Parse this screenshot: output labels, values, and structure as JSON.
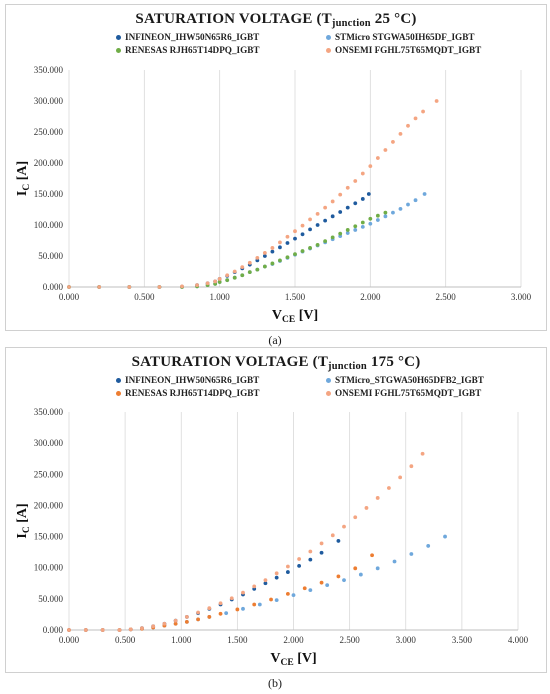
{
  "chart_data": [
    {
      "type": "scatter",
      "caption": "(a)",
      "title_main": "SATURATION VOLTAGE (T",
      "title_sub": "junction",
      "title_end": " 25 °C)",
      "xlabel_main": "V",
      "xlabel_sub": "CE",
      "xlabel_end": " [V]",
      "ylabel_main": "I",
      "ylabel_sub": "C",
      "ylabel_end": " [A]",
      "xlim": [
        0,
        3
      ],
      "ylim": [
        0,
        350
      ],
      "x_ticks": [
        0,
        0.5,
        1,
        1.5,
        2,
        2.5,
        3
      ],
      "y_ticks": [
        0,
        50,
        100,
        150,
        200,
        250,
        300,
        350
      ],
      "x_tick_labels": [
        "0.000",
        "0.500",
        "1.000",
        "1.500",
        "2.000",
        "2.500",
        "3.000"
      ],
      "y_tick_labels": [
        "0.000",
        "50.000",
        "100.000",
        "150.000",
        "200.000",
        "250.000",
        "300.000",
        "350.000"
      ],
      "grid": "vertical",
      "legend_position": "top",
      "series": [
        {
          "name": "INFINEON_IHW50N65R6_IGBT",
          "color": "#1f5b9e",
          "x": [
            0.0,
            0.2,
            0.4,
            0.6,
            0.75,
            0.85,
            0.92,
            0.97,
            1.0,
            1.05,
            1.1,
            1.15,
            1.2,
            1.25,
            1.3,
            1.35,
            1.4,
            1.45,
            1.5,
            1.55,
            1.6,
            1.65,
            1.7,
            1.75,
            1.8,
            1.85,
            1.9,
            1.95,
            1.99
          ],
          "y": [
            0,
            0,
            0,
            0,
            0.5,
            3,
            6,
            9,
            13,
            18,
            24,
            30,
            36,
            43,
            50,
            57,
            64,
            71,
            78,
            85,
            93,
            100,
            107,
            114,
            121,
            128,
            135,
            142,
            150
          ]
        },
        {
          "name": "STMicro STGWA50IH65DF_IGBT",
          "color": "#6fa8dc",
          "x": [
            0.0,
            0.2,
            0.4,
            0.6,
            0.75,
            0.85,
            0.92,
            0.97,
            1.0,
            1.05,
            1.1,
            1.15,
            1.2,
            1.25,
            1.3,
            1.35,
            1.4,
            1.45,
            1.5,
            1.55,
            1.6,
            1.65,
            1.7,
            1.75,
            1.8,
            1.85,
            1.9,
            1.95,
            2.0,
            2.05,
            2.1,
            2.15,
            2.2,
            2.25,
            2.3,
            2.36
          ],
          "y": [
            0,
            0,
            0,
            0,
            0,
            1,
            3,
            5,
            8,
            11,
            15,
            19,
            24,
            28,
            33,
            37,
            42,
            47,
            52,
            57,
            62,
            67,
            72,
            77,
            82,
            87,
            92,
            97,
            102,
            108,
            114,
            120,
            126,
            133,
            140,
            150
          ]
        },
        {
          "name": "RENESAS RJH65T14DPQ_IGBT",
          "color": "#70ad47",
          "x": [
            0.0,
            0.2,
            0.4,
            0.6,
            0.75,
            0.85,
            0.92,
            0.97,
            1.0,
            1.05,
            1.1,
            1.15,
            1.2,
            1.25,
            1.3,
            1.35,
            1.4,
            1.45,
            1.5,
            1.55,
            1.6,
            1.65,
            1.7,
            1.75,
            1.8,
            1.85,
            1.9,
            1.95,
            2.0,
            2.05,
            2.1
          ],
          "y": [
            0,
            0,
            0,
            0,
            0,
            1,
            3,
            5,
            8,
            11,
            15,
            19,
            24,
            28,
            33,
            38,
            43,
            48,
            53,
            58,
            63,
            68,
            74,
            80,
            86,
            92,
            98,
            104,
            110,
            115,
            120
          ]
        },
        {
          "name": "ONSEMI FGHL75T65MQDT_IGBT",
          "color": "#f4a582",
          "x": [
            0.0,
            0.2,
            0.4,
            0.6,
            0.75,
            0.85,
            0.92,
            0.97,
            1.0,
            1.05,
            1.1,
            1.15,
            1.2,
            1.25,
            1.3,
            1.35,
            1.4,
            1.45,
            1.5,
            1.55,
            1.6,
            1.65,
            1.7,
            1.75,
            1.8,
            1.85,
            1.9,
            1.95,
            2.0,
            2.05,
            2.1,
            2.15,
            2.2,
            2.25,
            2.3,
            2.35,
            2.44
          ],
          "y": [
            0,
            0,
            0,
            0,
            1,
            3,
            6,
            9,
            13,
            19,
            25,
            32,
            39,
            47,
            55,
            63,
            72,
            81,
            90,
            99,
            109,
            118,
            128,
            138,
            149,
            160,
            171,
            183,
            195,
            208,
            221,
            234,
            247,
            260,
            272,
            283,
            300
          ]
        }
      ]
    },
    {
      "type": "scatter",
      "caption": "(b)",
      "title_main": "SATURATION VOLTAGE (T",
      "title_sub": "junction",
      "title_end": " 175 °C)",
      "xlabel_main": "V",
      "xlabel_sub": "CE",
      "xlabel_end": " [V]",
      "ylabel_main": "I",
      "ylabel_sub": "C",
      "ylabel_end": " [A]",
      "xlim": [
        0,
        4
      ],
      "ylim": [
        0,
        350
      ],
      "x_ticks": [
        0,
        0.5,
        1,
        1.5,
        2,
        2.5,
        3,
        3.5,
        4
      ],
      "y_ticks": [
        0,
        50,
        100,
        150,
        200,
        250,
        300,
        350
      ],
      "x_tick_labels": [
        "0.000",
        "0.500",
        "1.000",
        "1.500",
        "2.000",
        "2.500",
        "3.000",
        "3.500",
        "4.000"
      ],
      "y_tick_labels": [
        "0.000",
        "50.000",
        "100.000",
        "150.000",
        "200.000",
        "250.000",
        "300.000",
        "350.000"
      ],
      "grid": "vertical",
      "legend_position": "top",
      "series": [
        {
          "name": "INFINEON_IHW50N65R6_IGBT",
          "color": "#1f5b9e",
          "x": [
            0.0,
            0.15,
            0.3,
            0.45,
            0.55,
            0.65,
            0.75,
            0.85,
            0.95,
            1.05,
            1.15,
            1.25,
            1.35,
            1.45,
            1.55,
            1.65,
            1.75,
            1.85,
            1.95,
            2.05,
            2.15,
            2.25,
            2.4
          ],
          "y": [
            0,
            0,
            0,
            0,
            1,
            3,
            6,
            10,
            15,
            21,
            27,
            34,
            41,
            49,
            57,
            66,
            75,
            84,
            93,
            103,
            113,
            124,
            143
          ]
        },
        {
          "name": "STMicro_STGWA50H65DFB2_IGBT",
          "color": "#6fa8dc",
          "x": [
            0.0,
            0.15,
            0.3,
            0.45,
            0.55,
            0.65,
            0.75,
            0.85,
            0.95,
            1.05,
            1.15,
            1.25,
            1.4,
            1.55,
            1.7,
            1.85,
            2.0,
            2.15,
            2.3,
            2.45,
            2.6,
            2.75,
            2.9,
            3.05,
            3.2,
            3.35
          ],
          "y": [
            0,
            0,
            0,
            0,
            1,
            2,
            4,
            7,
            10,
            13,
            17,
            21,
            27,
            34,
            41,
            48,
            56,
            64,
            72,
            80,
            89,
            99,
            110,
            122,
            135,
            150
          ]
        },
        {
          "name": "RENESAS RJH65T14DPQ_IGBT",
          "color": "#ed7d31",
          "x": [
            0.0,
            0.15,
            0.3,
            0.45,
            0.55,
            0.65,
            0.75,
            0.85,
            0.95,
            1.05,
            1.15,
            1.25,
            1.35,
            1.5,
            1.65,
            1.8,
            1.95,
            2.1,
            2.25,
            2.4,
            2.55,
            2.7
          ],
          "y": [
            0,
            0,
            0,
            0,
            1,
            2,
            4,
            7,
            10,
            13,
            17,
            21,
            26,
            33,
            41,
            49,
            58,
            67,
            76,
            86,
            99,
            120
          ]
        },
        {
          "name": "ONSEMI FGHL75T65MQDT_IGBT",
          "color": "#f4a582",
          "x": [
            0.0,
            0.15,
            0.3,
            0.45,
            0.55,
            0.65,
            0.75,
            0.85,
            0.95,
            1.05,
            1.15,
            1.25,
            1.35,
            1.45,
            1.55,
            1.65,
            1.75,
            1.85,
            1.95,
            2.05,
            2.15,
            2.25,
            2.35,
            2.45,
            2.55,
            2.65,
            2.75,
            2.85,
            2.95,
            3.05,
            3.15
          ],
          "y": [
            0,
            0,
            0,
            0,
            1,
            3,
            6,
            10,
            15,
            21,
            28,
            35,
            43,
            51,
            60,
            70,
            80,
            91,
            102,
            114,
            126,
            139,
            152,
            166,
            181,
            196,
            212,
            228,
            245,
            263,
            283
          ]
        }
      ]
    }
  ]
}
